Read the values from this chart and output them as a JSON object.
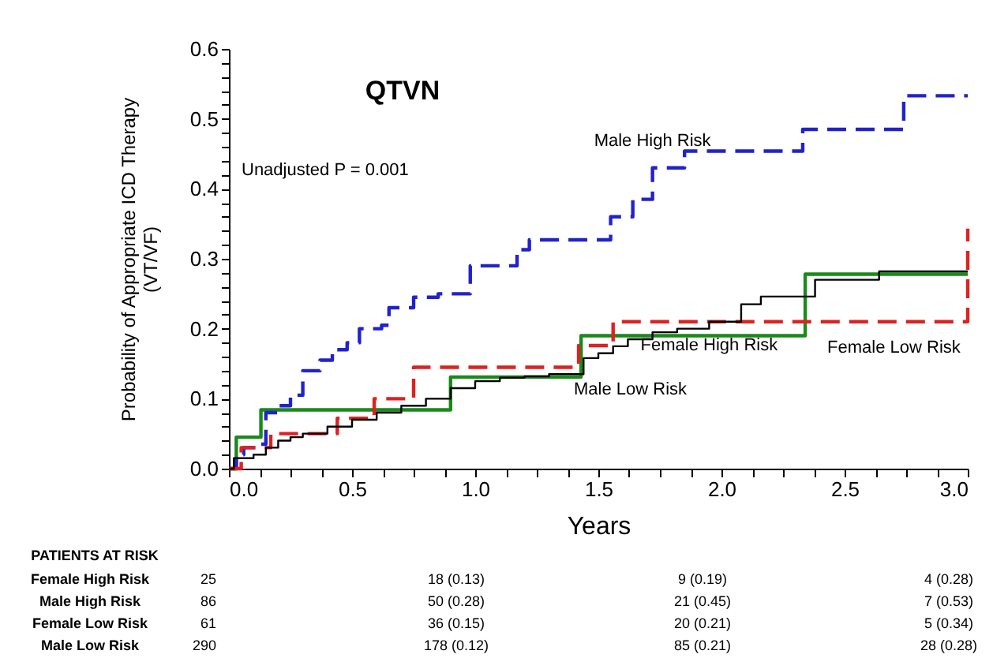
{
  "chart_data": {
    "type": "step",
    "title": "QTVN",
    "xlabel": "Years",
    "ylabel": "Probability of Appropriate ICD Therapy\n(VT/VF)",
    "xlim": [
      0,
      3.0
    ],
    "ylim": [
      0,
      0.6
    ],
    "xticks": [
      {
        "value": 0,
        "label": "0.0"
      },
      {
        "value": 0.125,
        "label": null
      },
      {
        "value": 0.25,
        "label": null
      },
      {
        "value": 0.375,
        "label": null
      },
      {
        "value": 0.5,
        "label": "0.5"
      },
      {
        "value": 0.625,
        "label": null
      },
      {
        "value": 0.75,
        "label": null
      },
      {
        "value": 0.875,
        "label": null
      },
      {
        "value": 1,
        "label": "1.0"
      },
      {
        "value": 1.125,
        "label": null
      },
      {
        "value": 1.25,
        "label": null
      },
      {
        "value": 1.375,
        "label": null
      },
      {
        "value": 1.5,
        "label": "1.5"
      },
      {
        "value": 1.625,
        "label": null
      },
      {
        "value": 1.75,
        "label": null
      },
      {
        "value": 1.875,
        "label": null
      },
      {
        "value": 2,
        "label": "2.0"
      },
      {
        "value": 2.125,
        "label": null
      },
      {
        "value": 2.25,
        "label": null
      },
      {
        "value": 2.375,
        "label": null
      },
      {
        "value": 2.5,
        "label": "2.5"
      },
      {
        "value": 2.625,
        "label": null
      },
      {
        "value": 2.75,
        "label": null
      },
      {
        "value": 2.875,
        "label": null
      },
      {
        "value": 3,
        "label": "3.0"
      }
    ],
    "yticks": [
      {
        "value": 0,
        "label": "0.0"
      },
      {
        "value": 0.02,
        "label": null
      },
      {
        "value": 0.04,
        "label": null
      },
      {
        "value": 0.06,
        "label": null
      },
      {
        "value": 0.08,
        "label": null
      },
      {
        "value": 0.1,
        "label": "0.1"
      },
      {
        "value": 0.12,
        "label": null
      },
      {
        "value": 0.14,
        "label": null
      },
      {
        "value": 0.16,
        "label": null
      },
      {
        "value": 0.18,
        "label": null
      },
      {
        "value": 0.2,
        "label": "0.2"
      },
      {
        "value": 0.22,
        "label": null
      },
      {
        "value": 0.24,
        "label": null
      },
      {
        "value": 0.26,
        "label": null
      },
      {
        "value": 0.28,
        "label": null
      },
      {
        "value": 0.3,
        "label": "0.3"
      },
      {
        "value": 0.32,
        "label": null
      },
      {
        "value": 0.34,
        "label": null
      },
      {
        "value": 0.36,
        "label": null
      },
      {
        "value": 0.38,
        "label": null
      },
      {
        "value": 0.4,
        "label": "0.4"
      },
      {
        "value": 0.42,
        "label": null
      },
      {
        "value": 0.44,
        "label": null
      },
      {
        "value": 0.46,
        "label": null
      },
      {
        "value": 0.48,
        "label": null
      },
      {
        "value": 0.5,
        "label": "0.5"
      },
      {
        "value": 0.52,
        "label": null
      },
      {
        "value": 0.54,
        "label": null
      },
      {
        "value": 0.56,
        "label": null
      },
      {
        "value": 0.58,
        "label": null
      },
      {
        "value": 0.6,
        "label": "0.6"
      }
    ],
    "grid": false,
    "series": [
      {
        "name": "Female High Risk",
        "color": "#1a8a1a",
        "line_style": "solid",
        "x": [
          0,
          0.03,
          0.13,
          0.9,
          1.43,
          2.34,
          3.0
        ],
        "values": [
          0,
          0.045,
          0.084,
          0.131,
          0.19,
          0.278,
          0.278
        ]
      },
      {
        "name": "Male High Risk",
        "color": "#2222cc",
        "line_style": "dashed",
        "x": [
          0,
          0.03,
          0.06,
          0.13,
          0.15,
          0.2,
          0.25,
          0.3,
          0.37,
          0.42,
          0.48,
          0.53,
          0.62,
          0.65,
          0.75,
          0.85,
          0.98,
          1.17,
          1.22,
          1.55,
          1.64,
          1.72,
          1.85,
          2.33,
          2.74,
          3.0
        ],
        "values": [
          0,
          0.02,
          0.03,
          0.035,
          0.08,
          0.09,
          0.105,
          0.14,
          0.155,
          0.17,
          0.18,
          0.2,
          0.205,
          0.23,
          0.245,
          0.25,
          0.29,
          0.313,
          0.327,
          0.36,
          0.385,
          0.43,
          0.454,
          0.485,
          0.533,
          0.533
        ]
      },
      {
        "name": "Female Low Risk",
        "color": "#dd2222",
        "line_style": "dashed",
        "x": [
          0,
          0.05,
          0.17,
          0.44,
          0.59,
          0.75,
          1.42,
          1.56,
          3.0
        ],
        "values": [
          0,
          0.03,
          0.05,
          0.072,
          0.1,
          0.145,
          0.176,
          0.21,
          0.343
        ]
      },
      {
        "name": "Male Low Risk",
        "color": "#000000",
        "line_style": "solid",
        "x": [
          0,
          0.02,
          0.1,
          0.15,
          0.2,
          0.25,
          0.3,
          0.4,
          0.5,
          0.6,
          0.7,
          0.8,
          0.9,
          1.0,
          1.1,
          1.2,
          1.3,
          1.44,
          1.5,
          1.56,
          1.62,
          1.72,
          1.82,
          1.95,
          2.08,
          2.16,
          2.38,
          2.64,
          3.0
        ],
        "values": [
          0,
          0.015,
          0.02,
          0.03,
          0.04,
          0.045,
          0.05,
          0.06,
          0.07,
          0.08,
          0.09,
          0.1,
          0.115,
          0.125,
          0.13,
          0.132,
          0.135,
          0.158,
          0.165,
          0.175,
          0.185,
          0.195,
          0.2,
          0.21,
          0.235,
          0.246,
          0.27,
          0.282,
          0.282
        ]
      }
    ],
    "annotations": [
      "Unadjusted P = 0.001",
      "PATIENTS AT RISK",
      "Female High Risk",
      "25",
      "18 (0.13)",
      "9 (0.19)",
      "4 (0.28)",
      "Male High Risk",
      "86",
      "50 (0.28)",
      "21 (0.45)",
      "7 (0.53)",
      "Female Low Risk",
      "61",
      "36 (0.15)",
      "20 (0.21)",
      "5 (0.34)",
      "Male Low Risk",
      "290",
      "178 (0.12)",
      "85 (0.21)",
      "28 (0.28)"
    ]
  }
}
